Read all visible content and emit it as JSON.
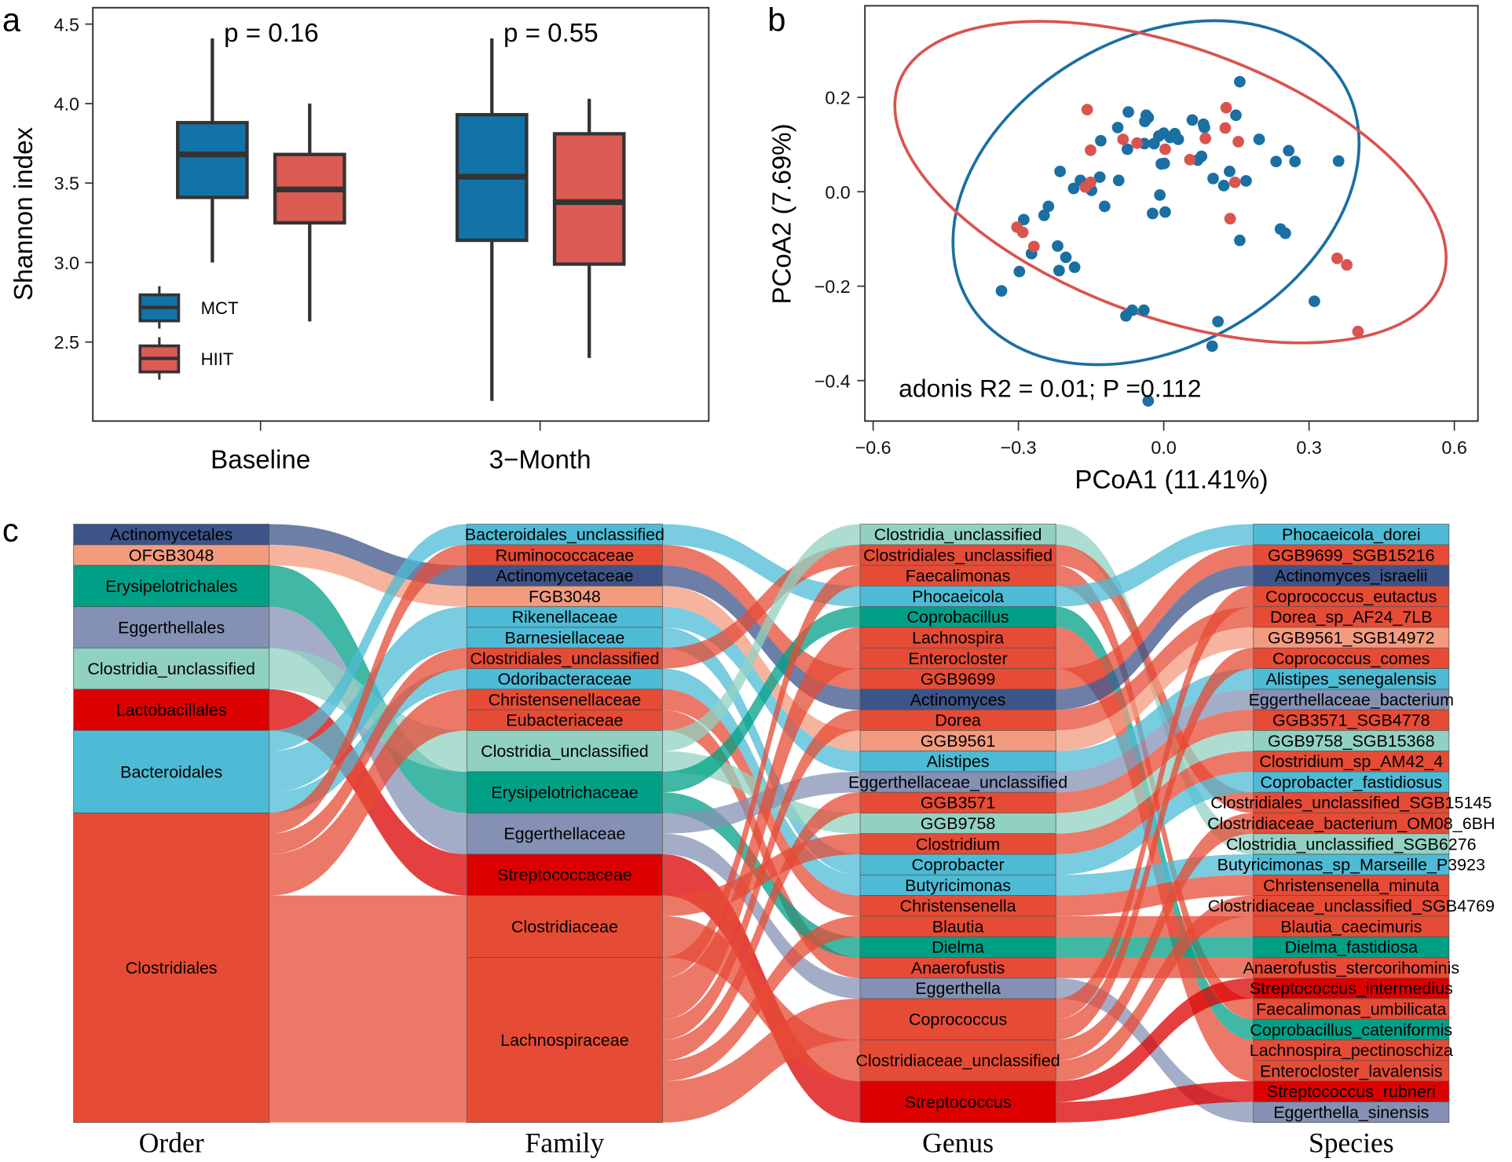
{
  "panel_labels": {
    "a": "a",
    "b": "b",
    "c": "c"
  },
  "chart_data": [
    {
      "type": "box",
      "id": "a",
      "ylabel": "Shannon index",
      "xlabel": "",
      "ylim": [
        2.05,
        4.6
      ],
      "yticks": [
        2.5,
        3.0,
        3.5,
        4.0,
        4.5
      ],
      "categories": [
        "Baseline",
        "3−Month"
      ],
      "series_colors": {
        "MCT": "#1273a8",
        "HIIT": "#dc5b53"
      },
      "legend": {
        "position": "bottom-left",
        "entries": [
          "MCT",
          "HIIT"
        ]
      },
      "annotations": [
        "p = 0.16",
        "p = 0.55"
      ],
      "boxes": [
        {
          "category": "Baseline",
          "series": "MCT",
          "whisker_low": 3.0,
          "q1": 3.41,
          "median": 3.68,
          "q3": 3.88,
          "whisker_high": 4.41
        },
        {
          "category": "Baseline",
          "series": "HIIT",
          "whisker_low": 2.63,
          "q1": 3.25,
          "median": 3.46,
          "q3": 3.68,
          "whisker_high": 4.0
        },
        {
          "category": "3−Month",
          "series": "MCT",
          "whisker_low": 2.13,
          "q1": 3.14,
          "median": 3.54,
          "q3": 3.93,
          "whisker_high": 4.41
        },
        {
          "category": "3−Month",
          "series": "HIIT",
          "whisker_low": 2.4,
          "q1": 2.99,
          "median": 3.38,
          "q3": 3.81,
          "whisker_high": 4.03
        }
      ]
    },
    {
      "type": "scatter",
      "id": "b",
      "xlabel": "PCoA1 (11.41%)",
      "ylabel": "PCoA2 (7.69%)",
      "xlim": [
        -0.61,
        0.65
      ],
      "ylim": [
        -0.47,
        0.39
      ],
      "xticks": [
        "-0.6",
        "-0.3",
        "0.0",
        "0.3",
        "0.6"
      ],
      "xtick_values": [
        -0.6,
        -0.3,
        0.0,
        0.3,
        0.6
      ],
      "yticks": [
        "−0.4",
        "−0.2",
        "0.0",
        "0.2"
      ],
      "ytick_values": [
        -0.4,
        -0.2,
        0.0,
        0.2
      ],
      "xtick_text": [
        "−0.6",
        "−0.3",
        "0.0",
        "0.3",
        "0.6"
      ],
      "annotation": "adonis R2 = 0.01; P =0.112",
      "series": [
        {
          "name": "MCT",
          "color": "#1a6fa3",
          "points": [
            [
              0.157,
              0.233
            ],
            [
              0.149,
              0.162
            ],
            [
              -0.073,
              0.169
            ],
            [
              -0.036,
              0.162
            ],
            [
              -0.032,
              0.157
            ],
            [
              -0.039,
              0.149
            ],
            [
              -0.095,
              0.136
            ],
            [
              0.059,
              0.152
            ],
            [
              0.082,
              0.143
            ],
            [
              0.084,
              0.136
            ],
            [
              0.197,
              0.111
            ],
            [
              -0.13,
              0.108
            ],
            [
              -0.075,
              0.09
            ],
            [
              -0.04,
              0.102
            ],
            [
              -0.02,
              0.102
            ],
            [
              -0.01,
              0.118
            ],
            [
              0.0,
              0.124
            ],
            [
              0.013,
              0.115
            ],
            [
              0.023,
              0.123
            ],
            [
              0.03,
              0.111
            ],
            [
              -0.005,
              0.059
            ],
            [
              0.001,
              0.06
            ],
            [
              0.07,
              0.067
            ],
            [
              0.078,
              0.075
            ],
            [
              0.258,
              0.087
            ],
            [
              0.232,
              0.064
            ],
            [
              0.271,
              0.064
            ],
            [
              0.361,
              0.065
            ],
            [
              -0.214,
              0.043
            ],
            [
              -0.172,
              0.024
            ],
            [
              -0.186,
              0.007
            ],
            [
              -0.149,
              0.003
            ],
            [
              -0.132,
              0.031
            ],
            [
              -0.093,
              0.024
            ],
            [
              0.102,
              0.028
            ],
            [
              0.136,
              0.043
            ],
            [
              0.124,
              0.013
            ],
            [
              0.17,
              0.023
            ],
            [
              -0.008,
              -0.007
            ],
            [
              -0.023,
              -0.046
            ],
            [
              0.003,
              -0.043
            ],
            [
              -0.122,
              -0.031
            ],
            [
              -0.238,
              -0.031
            ],
            [
              -0.247,
              -0.05
            ],
            [
              -0.289,
              -0.059
            ],
            [
              0.241,
              -0.079
            ],
            [
              0.251,
              -0.088
            ],
            [
              0.157,
              -0.103
            ],
            [
              -0.219,
              -0.115
            ],
            [
              -0.202,
              -0.139
            ],
            [
              -0.273,
              -0.131
            ],
            [
              -0.298,
              -0.169
            ],
            [
              -0.216,
              -0.167
            ],
            [
              -0.184,
              -0.16
            ],
            [
              -0.335,
              -0.21
            ],
            [
              -0.078,
              -0.263
            ],
            [
              -0.065,
              -0.251
            ],
            [
              -0.041,
              -0.251
            ],
            [
              0.112,
              -0.275
            ],
            [
              0.311,
              -0.232
            ],
            [
              0.1,
              -0.327
            ],
            [
              -0.032,
              -0.443
            ]
          ]
        },
        {
          "name": "HIIT",
          "color": "#d9534f",
          "points": [
            [
              -0.158,
              0.174
            ],
            [
              0.129,
              0.178
            ],
            [
              0.127,
              0.135
            ],
            [
              -0.084,
              0.111
            ],
            [
              -0.055,
              0.103
            ],
            [
              0.003,
              0.09
            ],
            [
              0.086,
              0.113
            ],
            [
              0.154,
              0.106
            ],
            [
              -0.151,
              0.088
            ],
            [
              0.054,
              0.068
            ],
            [
              -0.151,
              0.02
            ],
            [
              -0.162,
              0.01
            ],
            [
              0.147,
              0.02
            ],
            [
              0.137,
              -0.057
            ],
            [
              -0.303,
              -0.075
            ],
            [
              -0.291,
              -0.086
            ],
            [
              -0.268,
              -0.116
            ],
            [
              0.358,
              -0.141
            ],
            [
              0.378,
              -0.155
            ],
            [
              0.401,
              -0.296
            ]
          ]
        }
      ],
      "ellipses": [
        "MCT",
        "HIIT"
      ]
    },
    {
      "type": "sankey",
      "id": "c",
      "column_labels": [
        "Order",
        "Family",
        "Genus",
        "Species"
      ],
      "order_colors": {
        "Actinomycetales": "#3c5488",
        "OFGB3048": "#f39b7f",
        "Erysipelotrichales": "#00a087",
        "Eggerthellales": "#8491b4",
        "Clostridia_unclassified": "#91d1c2",
        "Lactobacillales": "#dc0000",
        "Bacteroidales": "#4dbbd5",
        "Clostridiales": "#e64b35"
      },
      "columns": [
        [
          "Actinomycetales",
          "OFGB3048",
          "Erysipelotrichales",
          "Eggerthellales",
          "Clostridia_unclassified",
          "Lactobacillales",
          "Bacteroidales",
          "Clostridiales"
        ],
        [
          "Bacteroidales_unclassified",
          "Ruminococcaceae",
          "Actinomycetaceae",
          "FGB3048",
          "Rikenellaceae",
          "Barnesiellaceae",
          "Clostridiales_unclassified",
          "Odoribacteraceae",
          "Christensenellaceae",
          "Eubacteriaceae",
          "Clostridia_unclassified",
          "Erysipelotrichaceae",
          "Eggerthellaceae",
          "Streptococcaceae",
          "Clostridiaceae",
          "Lachnospiraceae"
        ],
        [
          "Clostridia_unclassified",
          "Clostridiales_unclassified",
          "Faecalimonas",
          "Phocaeicola",
          "Coprobacillus",
          "Lachnospira",
          "Enterocloster",
          "GGB9699",
          "Actinomyces",
          "Dorea",
          "GGB9561",
          "Alistipes",
          "Eggerthellaceae_unclassified",
          "GGB3571",
          "GGB9758",
          "Clostridium",
          "Coprobacter",
          "Butyricimonas",
          "Christensenella",
          "Blautia",
          "Dielma",
          "Anaerofustis",
          "Eggerthella",
          "Coprococcus",
          "Clostridiaceae_unclassified",
          "Streptococcus"
        ],
        [
          "Phocaeicola_dorei",
          "GGB9699_SGB15216",
          "Actinomyces_israelii",
          "Coprococcus_eutactus",
          "Dorea_sp_AF24_7LB",
          "GGB9561_SGB14972",
          "Coprococcus_comes",
          "Alistipes_senegalensis",
          "Eggerthellaceae_bacterium",
          "GGB3571_SGB4778",
          "GGB9758_SGB15368",
          "Clostridium_sp_AM42_4",
          "Coprobacter_fastidiosus",
          "Clostridiales_unclassified_SGB15145",
          "Clostridiaceae_bacterium_OM08_6BH",
          "Clostridia_unclassified_SGB6276",
          "Butyricimonas_sp_Marseille_P3923",
          "Christensenella_minuta",
          "Clostridiaceae_unclassified_SGB4769",
          "Blautia_caecimuris",
          "Dielma_fastidiosa",
          "Anaerofustis_stercorihominis",
          "Streptococcus_intermedius",
          "Faecalimonas_umbilicata",
          "Coprobacillus_cateniformis",
          "Lachnospira_pectinoschiza",
          "Enterocloster_lavalensis",
          "Streptococcus_rubneri",
          "Eggerthella_sinensis"
        ]
      ],
      "paths": [
        [
          "Bacteroidales",
          "Bacteroidales_unclassified",
          "Phocaeicola",
          "Phocaeicola_dorei"
        ],
        [
          "Clostridiales",
          "Ruminococcaceae",
          "GGB9699",
          "GGB9699_SGB15216"
        ],
        [
          "Actinomycetales",
          "Actinomycetaceae",
          "Actinomyces",
          "Actinomyces_israelii"
        ],
        [
          "Clostridiales",
          "Lachnospiraceae",
          "Coprococcus",
          "Coprococcus_eutactus"
        ],
        [
          "Clostridiales",
          "Lachnospiraceae",
          "Dorea",
          "Dorea_sp_AF24_7LB"
        ],
        [
          "OFGB3048",
          "FGB3048",
          "GGB9561",
          "GGB9561_SGB14972"
        ],
        [
          "Clostridiales",
          "Lachnospiraceae",
          "Coprococcus",
          "Coprococcus_comes"
        ],
        [
          "Bacteroidales",
          "Rikenellaceae",
          "Alistipes",
          "Alistipes_senegalensis"
        ],
        [
          "Eggerthellales",
          "Eggerthellaceae",
          "Eggerthellaceae_unclassified",
          "Eggerthellaceae_bacterium"
        ],
        [
          "Clostridiales",
          "Lachnospiraceae",
          "GGB3571",
          "GGB3571_SGB4778"
        ],
        [
          "Clostridia_unclassified",
          "Clostridia_unclassified",
          "GGB9758",
          "GGB9758_SGB15368"
        ],
        [
          "Clostridiales",
          "Clostridiaceae",
          "Clostridium",
          "Clostridium_sp_AM42_4"
        ],
        [
          "Bacteroidales",
          "Barnesiellaceae",
          "Coprobacter",
          "Coprobacter_fastidiosus"
        ],
        [
          "Clostridiales",
          "Clostridiales_unclassified",
          "Clostridiales_unclassified",
          "Clostridiales_unclassified_SGB15145"
        ],
        [
          "Clostridiales",
          "Clostridiaceae",
          "Clostridiaceae_unclassified",
          "Clostridiaceae_bacterium_OM08_6BH"
        ],
        [
          "Clostridia_unclassified",
          "Clostridia_unclassified",
          "Clostridia_unclassified",
          "Clostridia_unclassified_SGB6276"
        ],
        [
          "Bacteroidales",
          "Odoribacteraceae",
          "Butyricimonas",
          "Butyricimonas_sp_Marseille_P3923"
        ],
        [
          "Clostridiales",
          "Christensenellaceae",
          "Christensenella",
          "Christensenella_minuta"
        ],
        [
          "Clostridiales",
          "Clostridiaceae",
          "Clostridiaceae_unclassified",
          "Clostridiaceae_unclassified_SGB4769"
        ],
        [
          "Clostridiales",
          "Lachnospiraceae",
          "Blautia",
          "Blautia_caecimuris"
        ],
        [
          "Erysipelotrichales",
          "Erysipelotrichaceae",
          "Dielma",
          "Dielma_fastidiosa"
        ],
        [
          "Clostridiales",
          "Eubacteriaceae",
          "Anaerofustis",
          "Anaerofustis_stercorihominis"
        ],
        [
          "Lactobacillales",
          "Streptococcaceae",
          "Streptococcus",
          "Streptococcus_intermedius"
        ],
        [
          "Clostridiales",
          "Lachnospiraceae",
          "Faecalimonas",
          "Faecalimonas_umbilicata"
        ],
        [
          "Erysipelotrichales",
          "Erysipelotrichaceae",
          "Coprobacillus",
          "Coprobacillus_cateniformis"
        ],
        [
          "Clostridiales",
          "Lachnospiraceae",
          "Lachnospira",
          "Lachnospira_pectinoschiza"
        ],
        [
          "Clostridiales",
          "Lachnospiraceae",
          "Enterocloster",
          "Enterocloster_lavalensis"
        ],
        [
          "Lactobacillales",
          "Streptococcaceae",
          "Streptococcus",
          "Streptococcus_rubneri"
        ],
        [
          "Eggerthellales",
          "Eggerthellaceae",
          "Eggerthella",
          "Eggerthella_sinensis"
        ]
      ]
    }
  ]
}
